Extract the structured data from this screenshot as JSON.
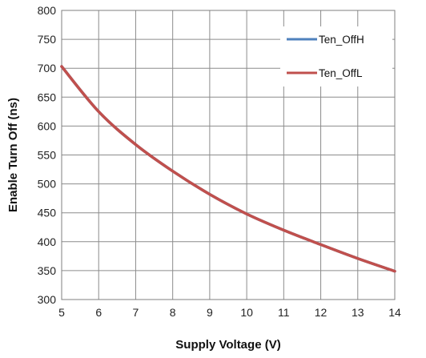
{
  "chart_data": {
    "type": "line",
    "title": "",
    "xlabel": "Supply Voltage (V)",
    "ylabel": "Enable Turn Off (ns)",
    "xlim": [
      5,
      14
    ],
    "ylim": [
      300,
      800
    ],
    "x_ticks": [
      "5",
      "6",
      "7",
      "8",
      "9",
      "10",
      "11",
      "12",
      "13",
      "14"
    ],
    "y_ticks": [
      "300",
      "350",
      "400",
      "450",
      "500",
      "550",
      "600",
      "650",
      "700",
      "750",
      "800"
    ],
    "grid": true,
    "legend_position": "top-right",
    "x": [
      5,
      6,
      7,
      8,
      9,
      10,
      11,
      12,
      13,
      14
    ],
    "series": [
      {
        "name": "Ten_OffH",
        "color": "#4f81bd",
        "values": [
          703,
          625,
          568,
          522,
          482,
          448,
          420,
          395,
          371,
          349
        ]
      },
      {
        "name": "Ten_OffL",
        "color": "#c0504d",
        "values": [
          703,
          625,
          568,
          522,
          482,
          448,
          420,
          395,
          371,
          349
        ]
      }
    ]
  }
}
